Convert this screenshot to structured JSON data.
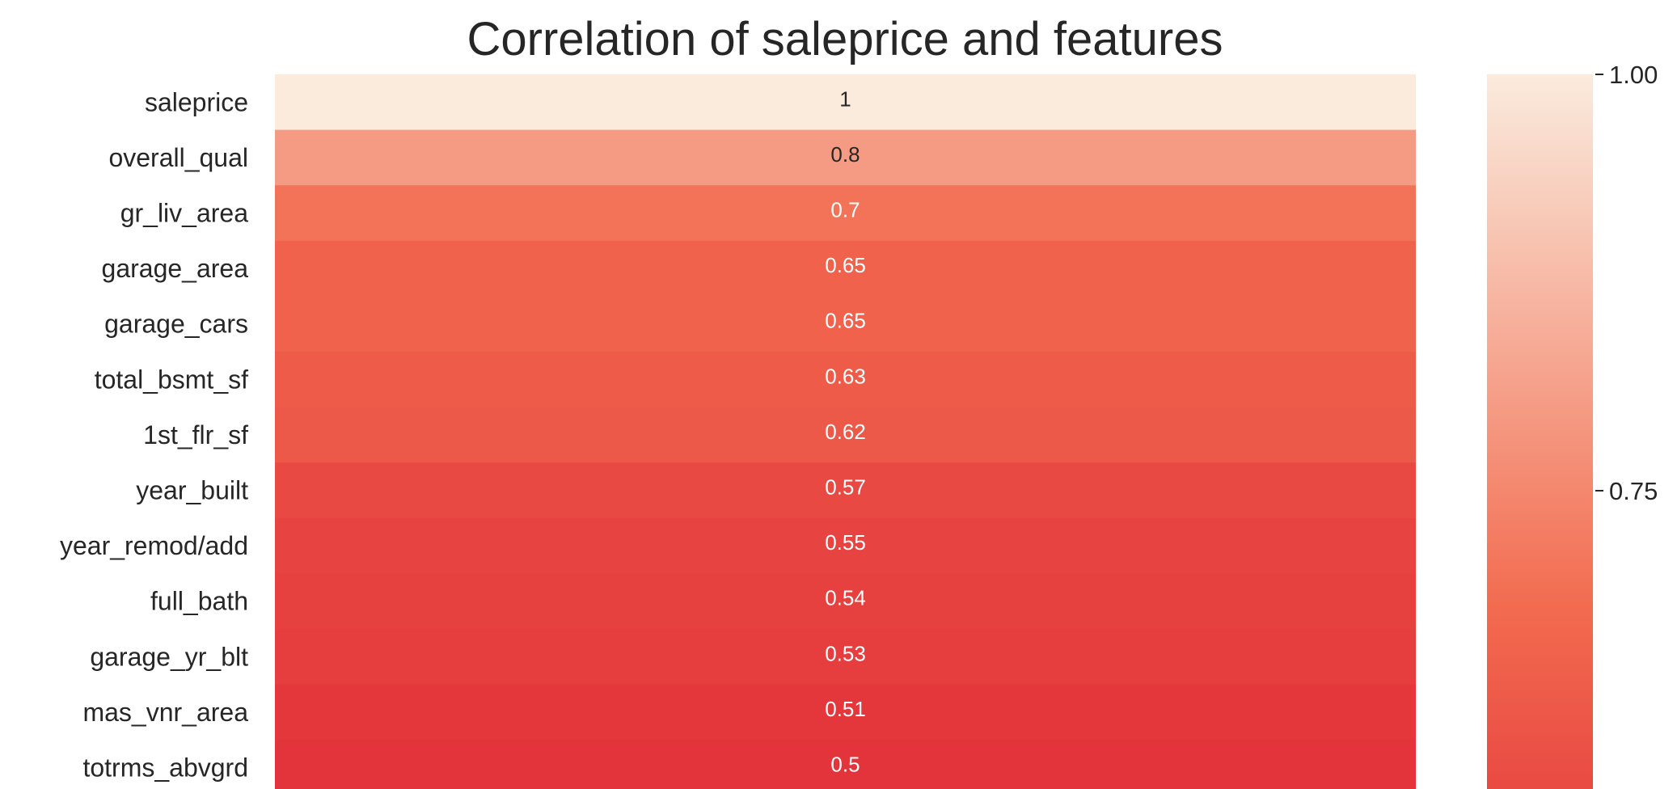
{
  "chart_data": {
    "type": "heatmap",
    "title": "Correlation of saleprice and features",
    "xlabel": "",
    "ylabel": "",
    "rows": [
      "saleprice",
      "overall_qual",
      "gr_liv_area",
      "garage_area",
      "garage_cars",
      "total_bsmt_sf",
      "1st_flr_sf",
      "year_built",
      "year_remod/add",
      "full_bath",
      "garage_yr_blt",
      "mas_vnr_area",
      "totrms_abvgrd"
    ],
    "values": [
      1,
      0.8,
      0.7,
      0.65,
      0.65,
      0.63,
      0.62,
      0.57,
      0.55,
      0.54,
      0.53,
      0.51,
      0.5
    ],
    "value_labels": [
      "1",
      "0.8",
      "0.7",
      "0.65",
      "0.65",
      "0.63",
      "0.62",
      "0.57",
      "0.55",
      "0.54",
      "0.53",
      "0.51",
      "0.5"
    ],
    "colorbar": {
      "ticks": [
        1.0,
        0.75
      ],
      "tick_labels": [
        "1.00",
        "0.75"
      ],
      "range": [
        0.5,
        1.0
      ]
    },
    "colors": {
      "low": "#e3343b",
      "mid": "#f26b4f",
      "high": "#faebdd",
      "dark_text": "#262626",
      "light_text": "#ffffff"
    }
  }
}
